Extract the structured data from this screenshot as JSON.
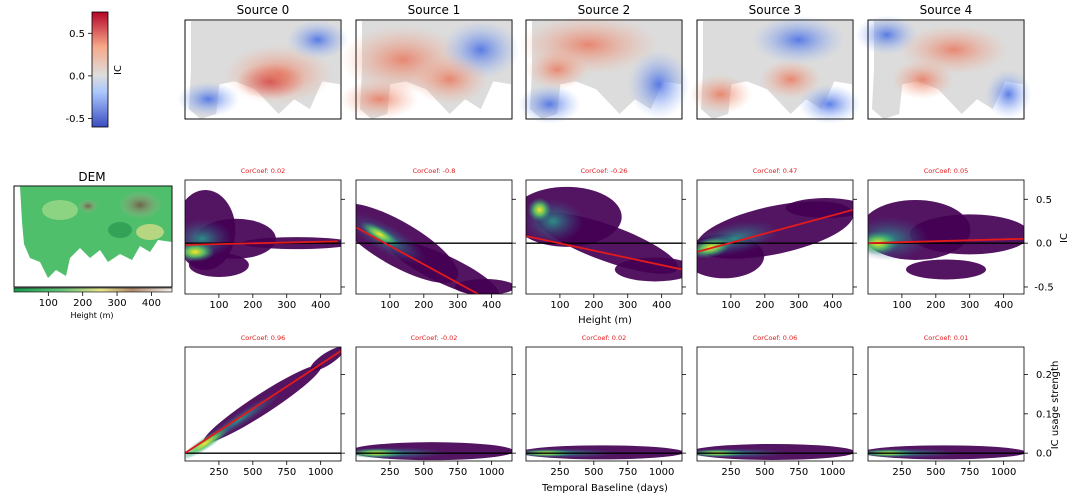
{
  "colors": {
    "axis": "#000000",
    "fit_line": "#e31a1c",
    "corcoef_text": "#e31a1c",
    "zero_line": "#000000",
    "density_low": "#440154",
    "density_mid": "#21918c",
    "density_high": "#fde725",
    "ic_negative": "#3b4cc0",
    "ic_positive": "#b40426",
    "dem_low": "#1a9850",
    "dem_high": "#8c6d5a"
  },
  "colorbar": {
    "label": "IC",
    "range": [
      -0.6,
      0.75
    ],
    "ticks": [
      "0.5",
      "0.0",
      "-0.5"
    ],
    "tick_values": [
      0.5,
      0.0,
      -0.5
    ]
  },
  "sources": [
    "Source 0",
    "Source 1",
    "Source 2",
    "Source 3",
    "Source 4"
  ],
  "dem": {
    "title": "DEM",
    "xlabel": "Height (m)",
    "range": [
      0,
      460
    ],
    "ticks": [
      "100",
      "200",
      "300",
      "400"
    ],
    "tick_values": [
      100,
      200,
      300,
      400
    ]
  },
  "chart_data": [
    {
      "type": "scatter",
      "name": "IC vs height",
      "xlabel": "Height (m)",
      "ylabel": "IC",
      "xlim": [
        0,
        460
      ],
      "ylim": [
        -0.58,
        0.72
      ],
      "xticks": [
        "100",
        "200",
        "300",
        "400"
      ],
      "xtick_values": [
        100,
        200,
        300,
        400
      ],
      "yticks": [
        "0.5",
        "0.0",
        "-0.5"
      ],
      "ytick_values": [
        0.5,
        0.0,
        -0.5
      ],
      "zero_line": 0,
      "panels": [
        {
          "source": "Source 0",
          "corcoef": "CorCoef: 0.02",
          "fit": [
            [
              0,
              -0.02
            ],
            [
              450,
              0.02
            ]
          ]
        },
        {
          "source": "Source 1",
          "corcoef": "CorCoef: -0.8",
          "fit": [
            [
              0,
              0.18
            ],
            [
              360,
              -0.58
            ]
          ]
        },
        {
          "source": "Source 2",
          "corcoef": "CorCoef: -0.26",
          "fit": [
            [
              0,
              0.08
            ],
            [
              460,
              -0.3
            ]
          ]
        },
        {
          "source": "Source 3",
          "corcoef": "CorCoef: 0.47",
          "fit": [
            [
              0,
              -0.1
            ],
            [
              460,
              0.38
            ]
          ]
        },
        {
          "source": "Source 4",
          "corcoef": "CorCoef: 0.05",
          "fit": [
            [
              0,
              0.0
            ],
            [
              460,
              0.05
            ]
          ]
        }
      ]
    },
    {
      "type": "scatter",
      "name": "IC usage strength vs temporal baseline",
      "xlabel": "Temporal Baseline (days)",
      "ylabel": "IC usage strength",
      "xlim": [
        0,
        1150
      ],
      "ylim": [
        -0.02,
        0.27
      ],
      "xticks": [
        "250",
        "500",
        "750",
        "1000"
      ],
      "xtick_values": [
        250,
        500,
        750,
        1000
      ],
      "yticks": [
        "0.2",
        "0.1",
        "0.0"
      ],
      "ytick_values": [
        0.2,
        0.1,
        0.0
      ],
      "zero_line": 0,
      "panels": [
        {
          "source": "Source 0",
          "corcoef": "CorCoef: 0.96",
          "fit": [
            [
              0,
              0.0
            ],
            [
              1150,
              0.26
            ]
          ]
        },
        {
          "source": "Source 1",
          "corcoef": "CorCoef: -0.02",
          "fit": null
        },
        {
          "source": "Source 2",
          "corcoef": "CorCoef: 0.02",
          "fit": null
        },
        {
          "source": "Source 3",
          "corcoef": "CorCoef: 0.06",
          "fit": null
        },
        {
          "source": "Source 4",
          "corcoef": "CorCoef: 0.01",
          "fit": null
        }
      ]
    }
  ]
}
